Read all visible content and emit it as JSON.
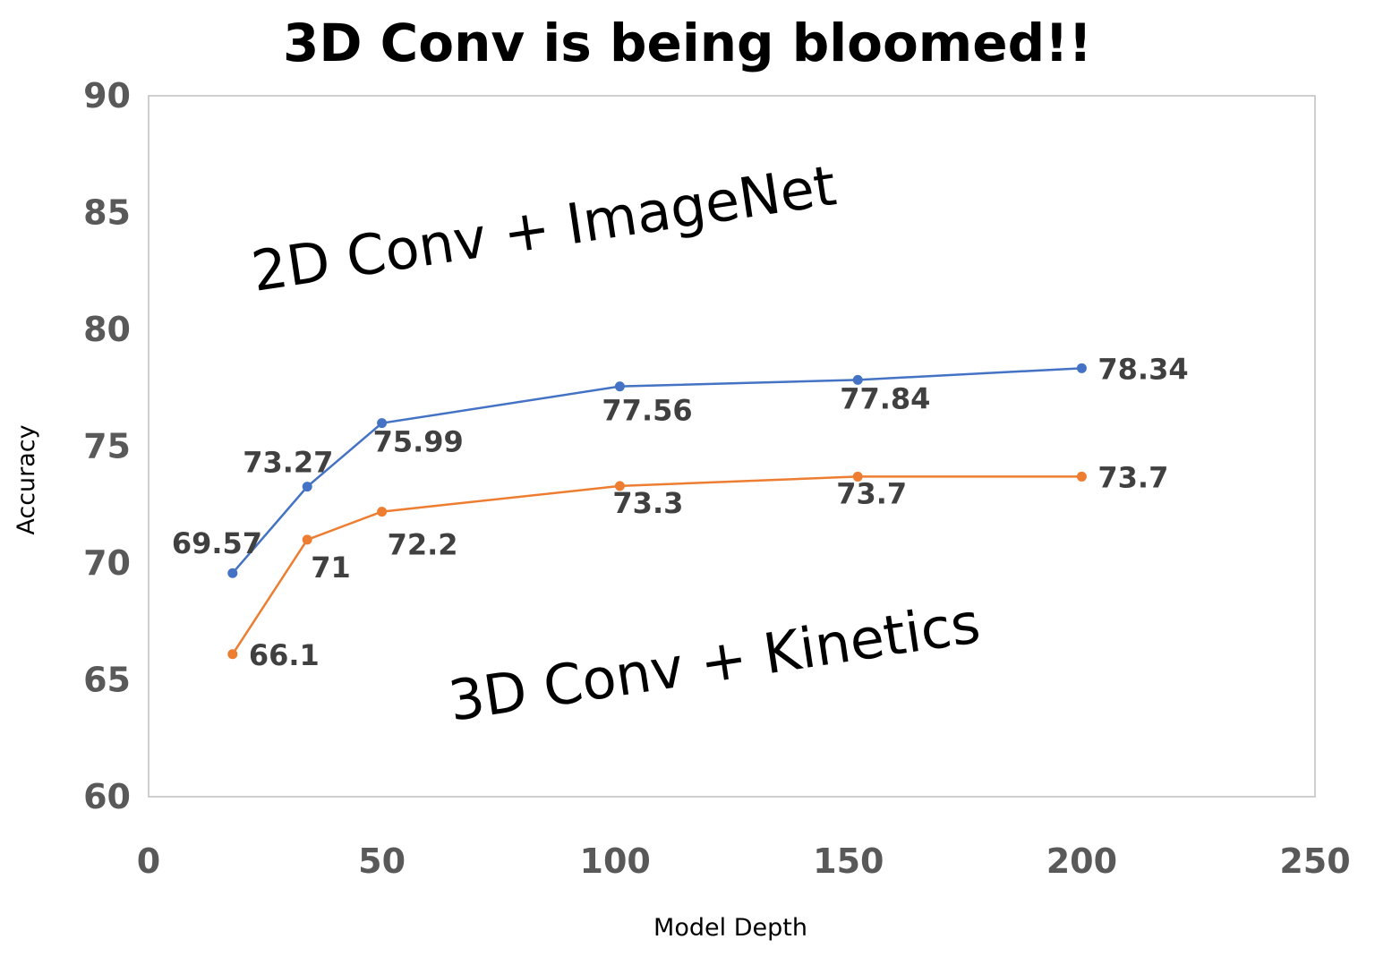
{
  "chart_data": {
    "type": "line",
    "title": "3D Conv is being bloomed!!",
    "xlabel": "Model Depth",
    "ylabel": "Accuracy",
    "xlim": [
      0,
      250
    ],
    "ylim": [
      60,
      90
    ],
    "x_ticks": [
      0,
      50,
      100,
      150,
      200,
      250
    ],
    "y_ticks": [
      60,
      65,
      70,
      75,
      80,
      85,
      90
    ],
    "grid": false,
    "legend": "none",
    "series": [
      {
        "color": "#4472C4",
        "x": [
          18,
          34,
          50,
          101,
          152,
          200
        ],
        "y": [
          69.57,
          73.27,
          75.99,
          77.56,
          77.84,
          78.34
        ],
        "labels": [
          "69.57",
          "73.27",
          "75.99",
          "77.56",
          "77.84",
          "78.34"
        ]
      },
      {
        "color": "#ED7D31",
        "x": [
          18,
          34,
          50,
          101,
          152,
          200
        ],
        "y": [
          66.1,
          71,
          72.2,
          73.3,
          73.7,
          73.7
        ],
        "labels": [
          "66.1",
          "71",
          "72.2",
          "73.3",
          "73.7",
          "73.7"
        ]
      }
    ],
    "annotations": [
      "2D Conv + ImageNet",
      "3D Conv + Kinetics"
    ]
  }
}
